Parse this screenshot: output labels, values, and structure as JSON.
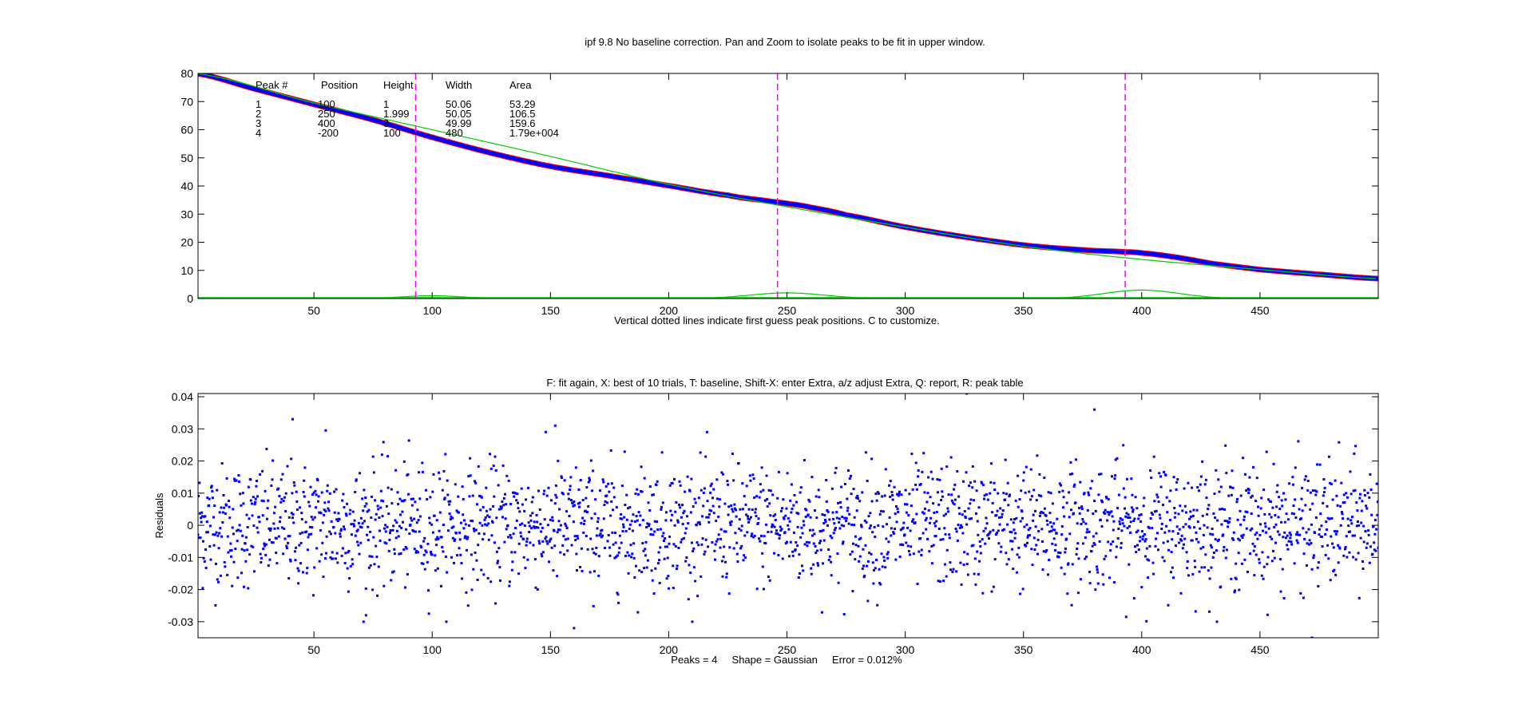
{
  "chart_data": [
    {
      "type": "line",
      "title": "ipf 9.8 No baseline correction. Pan and Zoom to isolate peaks to be fit in upper window.",
      "xlabel": "Vertical dotted lines indicate first guess peak positions. C to customize.",
      "ylabel": "",
      "xlim": [
        1,
        500
      ],
      "ylim": [
        0,
        80
      ],
      "xticks": [
        50,
        100,
        150,
        200,
        250,
        300,
        350,
        400,
        450
      ],
      "yticks": [
        0,
        10,
        20,
        30,
        40,
        50,
        60,
        70,
        80
      ],
      "grid": false,
      "peak_guess_lines": [
        93,
        246,
        393
      ],
      "colors": {
        "data": "#ff0000",
        "fit": "#0000ff",
        "components": "#00cc00",
        "guess_lines": "#ff00ff"
      },
      "series": [
        {
          "role": "measured signal + fitted model",
          "x": [
            0,
            25,
            50,
            75,
            100,
            125,
            150,
            175,
            200,
            225,
            240,
            250,
            260,
            275,
            300,
            325,
            350,
            375,
            390,
            400,
            415,
            430,
            450,
            475,
            500
          ],
          "y": [
            80,
            74.5,
            69,
            63.5,
            57.3,
            51.7,
            47,
            43.6,
            40.1,
            36.7,
            34.9,
            33.8,
            32.4,
            29.7,
            25.4,
            21.9,
            19.0,
            17.3,
            16.7,
            16.2,
            14.6,
            12.4,
            10.3,
            8.6,
            7.1
          ]
        },
        {
          "role": "peak 4 (broad baseline peak)",
          "x": [
            0,
            50,
            100,
            150,
            200,
            250,
            300,
            350,
            400,
            450,
            500
          ],
          "y": [
            80,
            69.5,
            60,
            50.5,
            40.6,
            32.6,
            25.4,
            18.6,
            13.9,
            10.3,
            7.1
          ]
        },
        {
          "role": "peak 1",
          "x": [
            60,
            80,
            100,
            120,
            140
          ],
          "y": [
            0,
            0.7,
            1,
            0.7,
            0
          ]
        },
        {
          "role": "peak 2",
          "x": [
            200,
            225,
            250,
            275,
            300
          ],
          "y": [
            0,
            1.4,
            2,
            1.4,
            0
          ]
        },
        {
          "role": "peak 3",
          "x": [
            350,
            375,
            400,
            425,
            450
          ],
          "y": [
            0,
            2.1,
            3,
            2.1,
            0
          ]
        }
      ],
      "peak_table": {
        "headers": [
          "Peak #",
          "Position",
          "Height",
          "Width",
          "Area"
        ],
        "rows": [
          [
            "1",
            "100",
            "1",
            "50.06",
            "53.29"
          ],
          [
            "2",
            "250",
            "1.999",
            "50.05",
            "106.5"
          ],
          [
            "3",
            "400",
            "3",
            "49.99",
            "159.6"
          ],
          [
            "4",
            "-200",
            "100",
            "480",
            "1.79e+004"
          ]
        ]
      }
    },
    {
      "type": "scatter",
      "title": "F: fit again, X: best of 10 trials, T: baseline, Shift-X: enter Extra, a/z adjust Extra, Q: report, R: peak table",
      "xlabel": "Peaks = 4     Shape = Gaussian     Error = 0.012%",
      "ylabel": "Residuals",
      "xlim": [
        1,
        500
      ],
      "ylim": [
        -0.035,
        0.041
      ],
      "xticks": [
        50,
        100,
        150,
        200,
        250,
        300,
        350,
        400,
        450
      ],
      "yticks": [
        -0.03,
        -0.02,
        -0.01,
        0,
        0.01,
        0.02,
        0.03,
        0.04
      ],
      "ytick_labels": [
        "-0.03",
        "-0.02",
        "-0.01",
        "0",
        "0.01",
        "0.02",
        "0.03",
        "0.04"
      ],
      "grid": false,
      "marker_color": "#0000ff",
      "series": [
        {
          "role": "residuals",
          "description": "random noise, approx. std 0.01 about 0, plotted at x step 0.2",
          "x_start": 1,
          "x_end": 500,
          "x_step": 0.2,
          "mean": 0,
          "std": 0.0095,
          "extremes": [
            [
              41,
              0.033
            ],
            [
              55,
              0.0295
            ],
            [
              152,
              0.031
            ],
            [
              326,
              0.041
            ],
            [
              380,
              0.036
            ],
            [
              472,
              -0.035
            ],
            [
              160,
              -0.032
            ],
            [
              72,
              -0.028
            ]
          ]
        }
      ]
    }
  ]
}
